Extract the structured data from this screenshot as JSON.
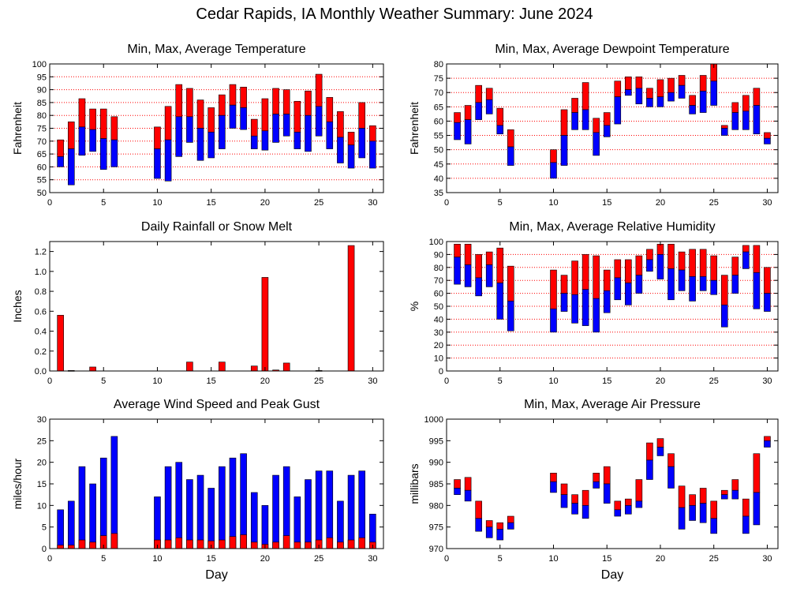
{
  "page_title": "Cedar Rapids, IA Monthly Weather Summary: June 2024",
  "colors": {
    "upper": "#ff0000",
    "lower": "#0000ff",
    "grid": "#ff0000",
    "frame": "#000000"
  },
  "chart_data": [
    {
      "id": "temp",
      "type": "bar",
      "style": "floating-range",
      "title": "Min, Max, Average Temperature",
      "xlabel": "",
      "ylabel": "Fahrenheit",
      "xlim": [
        0,
        31
      ],
      "ylim": [
        50,
        100
      ],
      "xticks": [
        0,
        5,
        10,
        15,
        20,
        25,
        30
      ],
      "yticks": [
        50,
        55,
        60,
        65,
        70,
        75,
        80,
        85,
        90,
        95,
        100
      ],
      "grid": true,
      "x": [
        1,
        2,
        3,
        4,
        5,
        6,
        10,
        11,
        12,
        13,
        14,
        15,
        16,
        17,
        18,
        19,
        20,
        21,
        22,
        23,
        24,
        25,
        26,
        27,
        28,
        29,
        30
      ],
      "min": [
        60,
        53,
        64.5,
        66,
        59,
        60,
        55.5,
        54.5,
        64,
        69.5,
        62.5,
        63.5,
        67,
        75,
        74.5,
        67,
        66.5,
        69.5,
        72,
        67,
        66,
        72,
        67,
        61.5,
        59.5,
        63.5,
        59.5
      ],
      "avg": [
        64,
        67,
        75.5,
        74.5,
        71,
        70.5,
        67,
        70.5,
        79.5,
        79.5,
        75,
        73.5,
        80,
        84,
        83,
        72,
        74,
        80.5,
        80.5,
        73.5,
        80,
        83.5,
        77.5,
        71.5,
        68.5,
        75,
        70
      ],
      "max": [
        70.5,
        77.5,
        86.5,
        82.5,
        82.5,
        79.5,
        75.5,
        83.5,
        92,
        90.5,
        86,
        83,
        88,
        92,
        91,
        78.5,
        86.5,
        90.5,
        90,
        85.5,
        89.5,
        96,
        87,
        81.5,
        73.5,
        85,
        76
      ]
    },
    {
      "id": "dewpoint",
      "type": "bar",
      "style": "floating-range",
      "title": "Min, Max, Average Dewpoint Temperature",
      "xlabel": "",
      "ylabel": "Fahrenheit",
      "xlim": [
        0,
        31
      ],
      "ylim": [
        35,
        80
      ],
      "xticks": [
        0,
        5,
        10,
        15,
        20,
        25,
        30
      ],
      "yticks": [
        35,
        40,
        45,
        50,
        55,
        60,
        65,
        70,
        75,
        80
      ],
      "grid": true,
      "x": [
        1,
        2,
        3,
        4,
        5,
        6,
        10,
        11,
        12,
        13,
        14,
        15,
        16,
        17,
        18,
        19,
        20,
        21,
        22,
        23,
        24,
        25,
        26,
        27,
        28,
        29,
        30
      ],
      "min": [
        53.5,
        52,
        60.5,
        62.5,
        55.5,
        44.5,
        40,
        44.5,
        57,
        57,
        48,
        54.5,
        59,
        69,
        66,
        65,
        65,
        67,
        68,
        62.5,
        63,
        65.5,
        55,
        57,
        57,
        55.5,
        52
      ],
      "avg": [
        59.5,
        60.5,
        66.5,
        67.5,
        58.5,
        51,
        45.5,
        55,
        63,
        64,
        56,
        58.5,
        68.5,
        71,
        71.5,
        68,
        68.5,
        70,
        72.5,
        65.5,
        70.5,
        74,
        57.5,
        63,
        63.5,
        65.5,
        54
      ],
      "max": [
        63,
        65.5,
        72.5,
        71.5,
        64.5,
        57,
        50,
        64,
        68,
        73.5,
        61,
        63,
        74,
        75.5,
        75.5,
        71.5,
        74.5,
        75,
        76,
        69,
        76,
        80,
        58.5,
        66.5,
        69,
        71.5,
        56
      ]
    },
    {
      "id": "rain",
      "type": "bar",
      "title": "Daily Rainfall or Snow Melt",
      "xlabel": "",
      "ylabel": "Inches",
      "xlim": [
        0,
        31
      ],
      "ylim": [
        0,
        1.3
      ],
      "xticks": [
        0,
        5,
        10,
        15,
        20,
        25,
        30
      ],
      "yticks": [
        0.0,
        0.2,
        0.4,
        0.6,
        0.8,
        1.0,
        1.2
      ],
      "ytick_labels": [
        "0.0",
        "0.2",
        "0.4",
        "0.6",
        "0.8",
        "1.0",
        "1.2"
      ],
      "grid": false,
      "x": [
        1,
        2,
        4,
        13,
        16,
        19,
        20,
        21,
        22,
        25,
        28
      ],
      "values": [
        0.56,
        0.005,
        0.04,
        0.09,
        0.09,
        0.05,
        0.94,
        0.01,
        0.08,
        0.005,
        1.26
      ]
    },
    {
      "id": "humidity",
      "type": "bar",
      "style": "floating-range",
      "title": "Min, Max, Average Relative Humidity",
      "xlabel": "",
      "ylabel": "%",
      "xlim": [
        0,
        31
      ],
      "ylim": [
        0,
        100
      ],
      "xticks": [
        0,
        5,
        10,
        15,
        20,
        25,
        30
      ],
      "yticks": [
        0,
        10,
        20,
        30,
        40,
        50,
        60,
        70,
        80,
        90,
        100
      ],
      "grid": true,
      "x": [
        1,
        2,
        3,
        4,
        5,
        6,
        10,
        11,
        12,
        13,
        14,
        15,
        16,
        17,
        18,
        19,
        20,
        21,
        22,
        23,
        24,
        25,
        26,
        27,
        28,
        29,
        30
      ],
      "min": [
        67,
        65,
        58,
        65,
        40,
        31,
        30,
        46,
        37,
        35,
        30,
        45,
        55,
        51,
        60,
        77,
        71,
        55,
        62,
        54,
        62,
        59,
        34,
        60,
        79,
        48,
        46
      ],
      "avg": [
        88,
        82,
        72,
        82,
        68,
        54,
        48,
        60,
        59,
        63,
        56,
        62,
        72,
        68,
        74,
        86,
        90,
        79,
        78,
        73,
        73,
        70,
        51,
        74,
        92,
        76,
        60
      ],
      "max": [
        98,
        98,
        90,
        92,
        95,
        81,
        78,
        74,
        85,
        90,
        89,
        78,
        86,
        86,
        89,
        94,
        98,
        98,
        92,
        94,
        94,
        89,
        74,
        88,
        97,
        97,
        80
      ]
    },
    {
      "id": "wind",
      "type": "bar",
      "style": "stacked",
      "title": "Average Wind Speed and Peak Gust",
      "xlabel": "Day",
      "ylabel": "miles/hour",
      "xlim": [
        0,
        31
      ],
      "ylim": [
        0,
        30
      ],
      "xticks": [
        0,
        5,
        10,
        15,
        20,
        25,
        30
      ],
      "yticks": [
        0,
        5,
        10,
        15,
        20,
        25,
        30
      ],
      "grid": false,
      "x": [
        1,
        2,
        3,
        4,
        5,
        6,
        10,
        11,
        12,
        13,
        14,
        15,
        16,
        17,
        18,
        19,
        20,
        21,
        22,
        23,
        24,
        25,
        26,
        27,
        28,
        29,
        30
      ],
      "average": [
        0.8,
        0.8,
        2,
        1.5,
        3,
        3.5,
        2,
        2,
        2.5,
        2,
        2,
        1.8,
        2,
        2.8,
        3.2,
        1.5,
        1,
        1.5,
        3,
        1.5,
        1.5,
        2,
        2.5,
        1.5,
        2,
        2.5,
        1.5
      ],
      "gust": [
        9,
        11,
        19,
        15,
        21,
        26,
        12,
        19,
        20,
        16,
        17,
        14,
        19,
        21,
        22,
        13,
        10,
        17,
        19,
        12,
        16,
        18,
        18,
        11,
        17,
        18,
        8
      ]
    },
    {
      "id": "pressure",
      "type": "bar",
      "style": "floating-range",
      "title": "Min, Max, Average Air Pressure",
      "xlabel": "Day",
      "ylabel": "millibars",
      "xlim": [
        0,
        31
      ],
      "ylim": [
        970,
        1000
      ],
      "xticks": [
        0,
        5,
        10,
        15,
        20,
        25,
        30
      ],
      "yticks": [
        970,
        975,
        980,
        985,
        990,
        995,
        1000
      ],
      "grid": false,
      "x": [
        1,
        2,
        3,
        4,
        5,
        6,
        10,
        11,
        12,
        13,
        14,
        15,
        16,
        17,
        18,
        19,
        20,
        21,
        22,
        23,
        24,
        25,
        26,
        27,
        28,
        29,
        30
      ],
      "min": [
        982.5,
        981,
        974,
        972.5,
        972,
        974.5,
        983,
        979.5,
        978,
        977,
        984,
        980.5,
        977.5,
        978,
        979.5,
        986,
        991.5,
        984,
        974.5,
        976.5,
        976,
        973.5,
        981.5,
        981.5,
        973.5,
        975.5,
        993.5
      ],
      "avg": [
        984,
        983.5,
        977,
        975,
        974.5,
        976,
        985.5,
        982.5,
        980.5,
        980,
        985.5,
        985,
        979,
        980,
        981,
        990.5,
        993.5,
        989,
        979.5,
        980,
        980.5,
        977,
        982.5,
        983.5,
        977.5,
        983,
        995
      ],
      "max": [
        986,
        986.5,
        981,
        976.5,
        976,
        977.5,
        987.5,
        985,
        982.5,
        983.5,
        987.5,
        989,
        981,
        981.5,
        986,
        994.5,
        995.5,
        992,
        984.5,
        982.5,
        984,
        981,
        983.5,
        986,
        981.5,
        992,
        996
      ]
    }
  ]
}
